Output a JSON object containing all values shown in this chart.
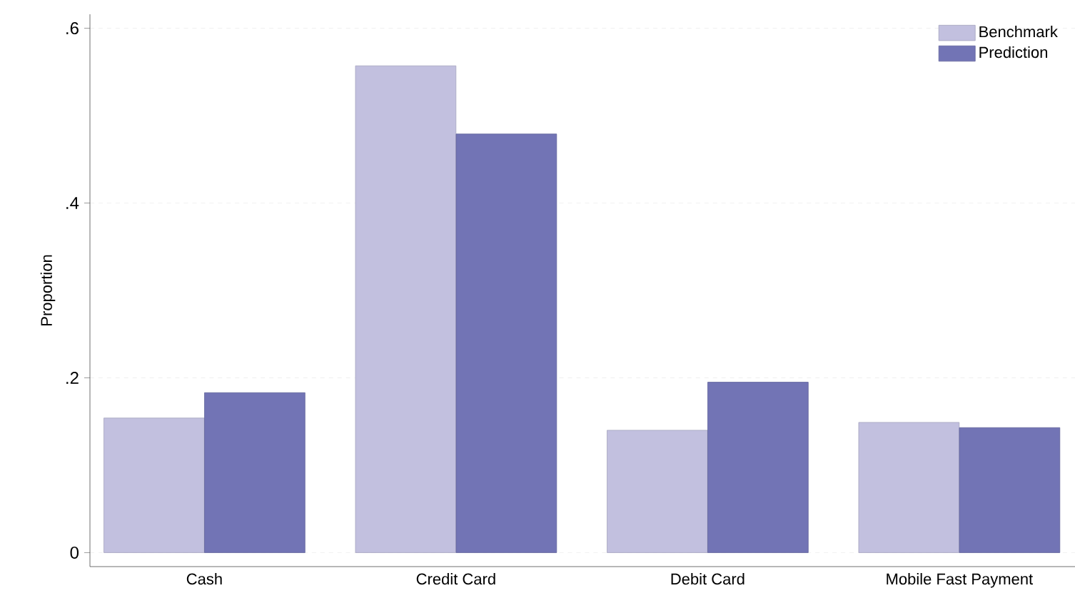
{
  "chart_data": {
    "type": "bar",
    "ylabel": "Proportion",
    "categories": [
      "Cash",
      "Credit Card",
      "Debit Card",
      "Mobile Fast Payment"
    ],
    "series": [
      {
        "name": "Benchmark",
        "color": "#c2c0df",
        "values": [
          0.154,
          0.557,
          0.14,
          0.149
        ]
      },
      {
        "name": "Prediction",
        "color": "#7274b5",
        "values": [
          0.183,
          0.479,
          0.195,
          0.143
        ]
      }
    ],
    "ylim": [
      -0.016,
      0.616
    ],
    "yticks": [
      0,
      {
        "value": 0.2,
        "label": ".2"
      },
      {
        "value": 0.4,
        "label": ".4"
      },
      {
        "value": 0.6,
        "label": ".6"
      }
    ],
    "grid": "y",
    "legend": "top right"
  }
}
